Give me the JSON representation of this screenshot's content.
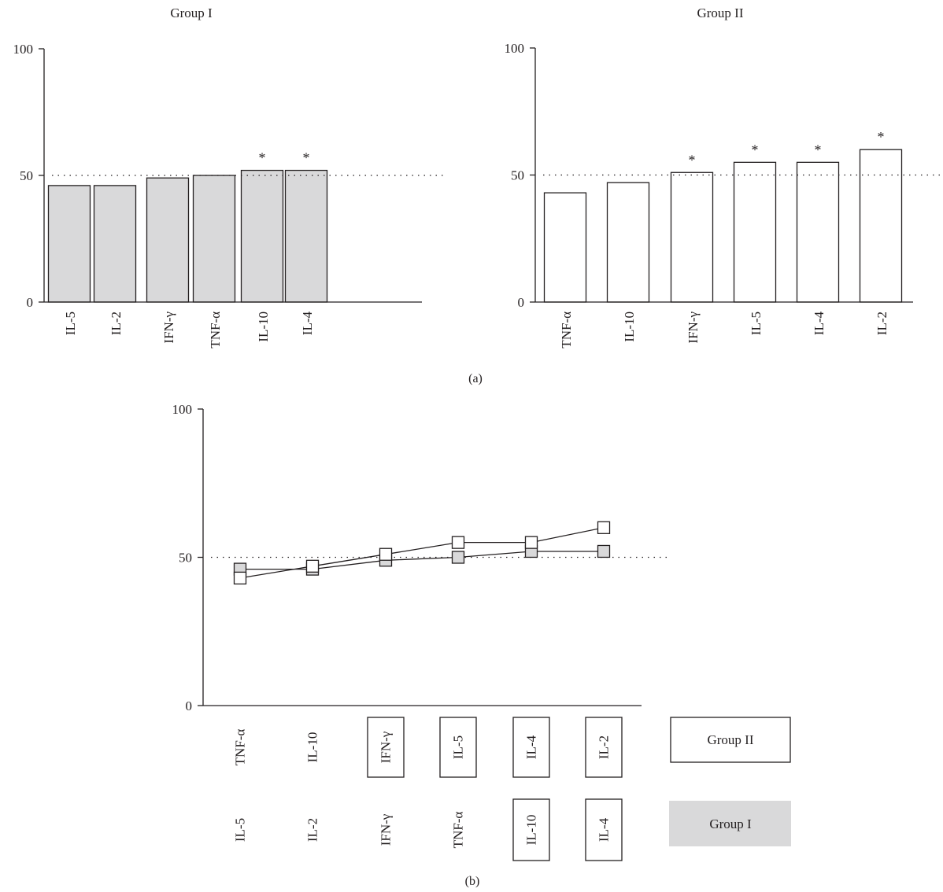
{
  "panel_a_label": "(a)",
  "panel_b_label": "(b)",
  "colors": {
    "group1_fill": "#d9d9da",
    "group2_fill": "#ffffff",
    "ink": "#231f20"
  },
  "chart_data": [
    {
      "type": "bar",
      "title": "Group I",
      "categories": [
        "IL-5",
        "IL-2",
        "IFN-γ",
        "TNF-α",
        "IL-10",
        "IL-4"
      ],
      "values": [
        46,
        46,
        49,
        50,
        52,
        52
      ],
      "significant": [
        false,
        false,
        false,
        false,
        true,
        true
      ],
      "marker": "*",
      "ylim": [
        0,
        100
      ],
      "yticks": [
        "0",
        "50",
        "100"
      ],
      "reference_line": 50,
      "bar_color": "#d9d9da"
    },
    {
      "type": "bar",
      "title": "Group II",
      "categories": [
        "TNF-α",
        "IL-10",
        "IFN-γ",
        "IL-5",
        "IL-4",
        "IL-2"
      ],
      "values": [
        43,
        47,
        51,
        55,
        55,
        60
      ],
      "significant": [
        false,
        false,
        true,
        true,
        true,
        true
      ],
      "marker": "*",
      "ylim": [
        0,
        100
      ],
      "yticks": [
        "0",
        "50",
        "100"
      ],
      "reference_line": 50,
      "bar_color": "#ffffff"
    },
    {
      "type": "line",
      "ylim": [
        0,
        100
      ],
      "yticks": [
        "0",
        "50",
        "100"
      ],
      "reference_line": 50,
      "x_rank": [
        1,
        2,
        3,
        4,
        5,
        6
      ],
      "series": [
        {
          "name": "Group I",
          "categories": [
            "IL-5",
            "IL-2",
            "IFN-γ",
            "TNF-α",
            "IL-10",
            "IL-4"
          ],
          "values": [
            46,
            46,
            49,
            50,
            52,
            52
          ],
          "boxed": [
            false,
            false,
            false,
            false,
            true,
            true
          ],
          "color": "#d9d9da"
        },
        {
          "name": "Group II",
          "categories": [
            "TNF-α",
            "IL-10",
            "IFN-γ",
            "IL-5",
            "IL-4",
            "IL-2"
          ],
          "values": [
            43,
            47,
            51,
            55,
            55,
            60
          ],
          "boxed": [
            false,
            false,
            true,
            true,
            true,
            true
          ],
          "color": "#ffffff"
        }
      ]
    }
  ]
}
